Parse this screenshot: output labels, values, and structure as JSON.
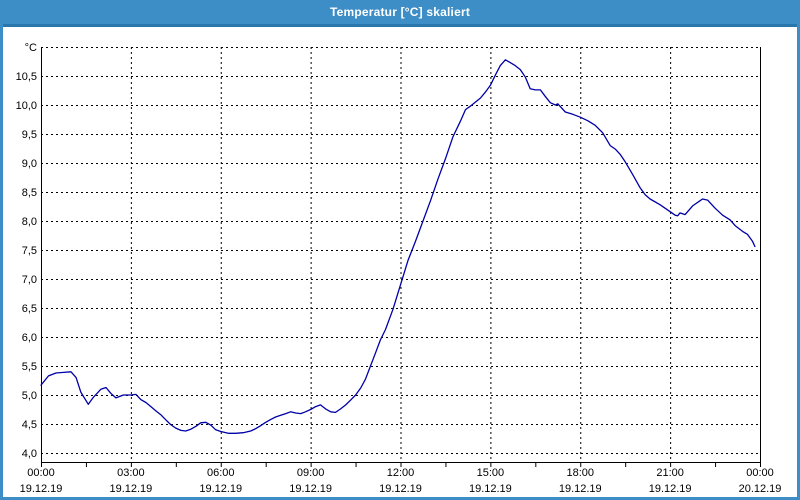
{
  "window": {
    "title": "Temperatur [°C] skaliert"
  },
  "colors": {
    "titlebar": "#3D8EC6",
    "titlebar_separator": "#2878AE",
    "window_border": "#3D8EC6",
    "plot_background": "#ffffff",
    "grid": "#000000",
    "series_line": "#0000A8",
    "label_text": "#000000",
    "title_text": "#ffffff"
  },
  "chart_data": {
    "type": "line",
    "title": "Temperatur [°C] skaliert",
    "unit_label": "°C",
    "grid": "dashed",
    "legend": "none",
    "ylim": [
      4.0,
      11.0
    ],
    "xlim_hours": [
      0,
      24
    ],
    "y_ticks": [
      {
        "label": "10,5",
        "value": 10.5
      },
      {
        "label": "10,0",
        "value": 10.0
      },
      {
        "label": "9,5",
        "value": 9.5
      },
      {
        "label": "9,0",
        "value": 9.0
      },
      {
        "label": "8,5",
        "value": 8.5
      },
      {
        "label": "8,0",
        "value": 8.0
      },
      {
        "label": "7,5",
        "value": 7.5
      },
      {
        "label": "7,0",
        "value": 7.0
      },
      {
        "label": "6,5",
        "value": 6.5
      },
      {
        "label": "6,0",
        "value": 6.0
      },
      {
        "label": "5,5",
        "value": 5.5
      },
      {
        "label": "5,0",
        "value": 5.0
      },
      {
        "label": "4,5",
        "value": 4.5
      },
      {
        "label": "4,0",
        "value": 4.0
      }
    ],
    "x_ticks": [
      {
        "time": "00:00",
        "date": "19.12.19",
        "hour": 0
      },
      {
        "time": "03:00",
        "date": "19.12.19",
        "hour": 3
      },
      {
        "time": "06:00",
        "date": "19.12.19",
        "hour": 6
      },
      {
        "time": "09:00",
        "date": "19.12.19",
        "hour": 9
      },
      {
        "time": "12:00",
        "date": "19.12.19",
        "hour": 12
      },
      {
        "time": "15:00",
        "date": "19.12.19",
        "hour": 15
      },
      {
        "time": "18:00",
        "date": "19.12.19",
        "hour": 18
      },
      {
        "time": "21:00",
        "date": "19.12.19",
        "hour": 21
      },
      {
        "time": "00:00",
        "date": "20.12.19",
        "hour": 24
      }
    ],
    "minor_tick_interval_hours": 1.5,
    "series": [
      {
        "name": "Temperatur",
        "color": "#0000A8",
        "points": [
          [
            0.0,
            5.17
          ],
          [
            0.25,
            5.33
          ],
          [
            0.5,
            5.38
          ],
          [
            0.75,
            5.39
          ],
          [
            1.0,
            5.4
          ],
          [
            1.17,
            5.3
          ],
          [
            1.33,
            5.05
          ],
          [
            1.58,
            4.84
          ],
          [
            1.75,
            4.96
          ],
          [
            2.0,
            5.1
          ],
          [
            2.17,
            5.13
          ],
          [
            2.33,
            5.03
          ],
          [
            2.5,
            4.95
          ],
          [
            2.75,
            5.0
          ],
          [
            3.0,
            5.0
          ],
          [
            3.17,
            5.01
          ],
          [
            3.33,
            4.92
          ],
          [
            3.5,
            4.87
          ],
          [
            3.67,
            4.8
          ],
          [
            3.83,
            4.73
          ],
          [
            4.0,
            4.66
          ],
          [
            4.17,
            4.57
          ],
          [
            4.33,
            4.49
          ],
          [
            4.5,
            4.43
          ],
          [
            4.67,
            4.39
          ],
          [
            4.83,
            4.38
          ],
          [
            5.0,
            4.41
          ],
          [
            5.17,
            4.46
          ],
          [
            5.33,
            4.52
          ],
          [
            5.5,
            4.53
          ],
          [
            5.67,
            4.48
          ],
          [
            5.83,
            4.4
          ],
          [
            6.0,
            4.37
          ],
          [
            6.25,
            4.34
          ],
          [
            6.5,
            4.34
          ],
          [
            6.75,
            4.35
          ],
          [
            7.0,
            4.38
          ],
          [
            7.17,
            4.42
          ],
          [
            7.33,
            4.47
          ],
          [
            7.5,
            4.53
          ],
          [
            7.67,
            4.58
          ],
          [
            7.83,
            4.62
          ],
          [
            8.0,
            4.65
          ],
          [
            8.17,
            4.68
          ],
          [
            8.33,
            4.71
          ],
          [
            8.5,
            4.69
          ],
          [
            8.67,
            4.68
          ],
          [
            8.83,
            4.71
          ],
          [
            9.0,
            4.75
          ],
          [
            9.17,
            4.8
          ],
          [
            9.33,
            4.83
          ],
          [
            9.5,
            4.76
          ],
          [
            9.67,
            4.71
          ],
          [
            9.83,
            4.7
          ],
          [
            10.0,
            4.76
          ],
          [
            10.17,
            4.83
          ],
          [
            10.33,
            4.91
          ],
          [
            10.5,
            5.0
          ],
          [
            10.67,
            5.12
          ],
          [
            10.83,
            5.27
          ],
          [
            11.0,
            5.5
          ],
          [
            11.17,
            5.73
          ],
          [
            11.33,
            5.95
          ],
          [
            11.5,
            6.13
          ],
          [
            11.75,
            6.48
          ],
          [
            12.0,
            6.9
          ],
          [
            12.25,
            7.32
          ],
          [
            12.5,
            7.65
          ],
          [
            12.75,
            8.0
          ],
          [
            13.0,
            8.35
          ],
          [
            13.25,
            8.72
          ],
          [
            13.5,
            9.07
          ],
          [
            13.75,
            9.45
          ],
          [
            14.0,
            9.72
          ],
          [
            14.17,
            9.92
          ],
          [
            14.33,
            9.98
          ],
          [
            14.5,
            10.05
          ],
          [
            14.67,
            10.12
          ],
          [
            14.83,
            10.22
          ],
          [
            15.0,
            10.34
          ],
          [
            15.17,
            10.52
          ],
          [
            15.33,
            10.68
          ],
          [
            15.5,
            10.78
          ],
          [
            15.67,
            10.73
          ],
          [
            15.83,
            10.68
          ],
          [
            16.0,
            10.61
          ],
          [
            16.17,
            10.48
          ],
          [
            16.33,
            10.28
          ],
          [
            16.5,
            10.26
          ],
          [
            16.67,
            10.26
          ],
          [
            16.83,
            10.15
          ],
          [
            17.0,
            10.04
          ],
          [
            17.17,
            10.0
          ],
          [
            17.25,
            10.02
          ],
          [
            17.5,
            9.88
          ],
          [
            17.75,
            9.84
          ],
          [
            18.0,
            9.79
          ],
          [
            18.25,
            9.73
          ],
          [
            18.5,
            9.65
          ],
          [
            18.75,
            9.52
          ],
          [
            19.0,
            9.3
          ],
          [
            19.17,
            9.24
          ],
          [
            19.33,
            9.15
          ],
          [
            19.5,
            9.02
          ],
          [
            19.75,
            8.8
          ],
          [
            20.0,
            8.57
          ],
          [
            20.17,
            8.45
          ],
          [
            20.33,
            8.38
          ],
          [
            20.67,
            8.28
          ],
          [
            21.0,
            8.16
          ],
          [
            21.17,
            8.1
          ],
          [
            21.25,
            8.09
          ],
          [
            21.33,
            8.14
          ],
          [
            21.5,
            8.11
          ],
          [
            21.75,
            8.26
          ],
          [
            22.0,
            8.35
          ],
          [
            22.08,
            8.38
          ],
          [
            22.25,
            8.36
          ],
          [
            22.5,
            8.22
          ],
          [
            22.75,
            8.1
          ],
          [
            23.0,
            8.02
          ],
          [
            23.17,
            7.92
          ],
          [
            23.42,
            7.82
          ],
          [
            23.58,
            7.77
          ],
          [
            23.75,
            7.65
          ],
          [
            23.83,
            7.56
          ]
        ]
      }
    ]
  }
}
